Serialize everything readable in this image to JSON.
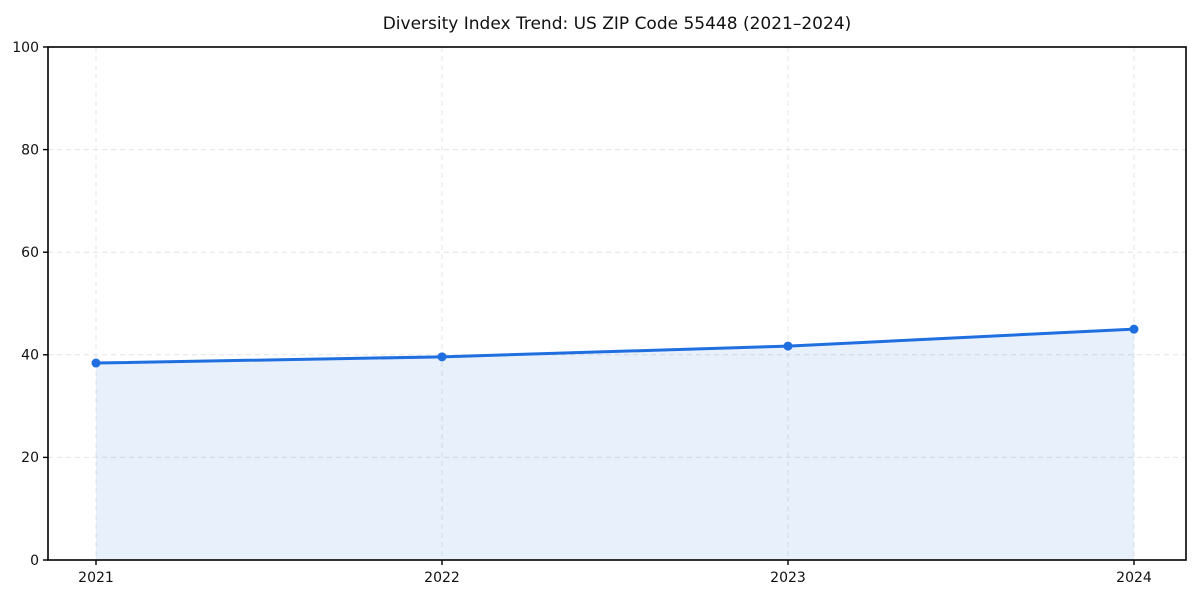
{
  "chart_data": {
    "type": "area",
    "title": "Diversity Index Trend: US ZIP Code 55448 (2021–2024)",
    "x": [
      "2021",
      "2022",
      "2023",
      "2024"
    ],
    "series": [
      {
        "name": "Diversity Index",
        "values": [
          38.4,
          39.6,
          41.7,
          45.0
        ]
      }
    ],
    "xlabel": "",
    "ylabel": "",
    "ylim": [
      0,
      100
    ],
    "yticks": [
      0,
      20,
      40,
      60,
      80,
      100
    ],
    "grid": "dashed",
    "legend": "none",
    "colors": {
      "line": "#1f6fe0",
      "marker": "#1f6fe0",
      "fill": "rgba(31,111,224,0.10)",
      "grid": "#e4e4e4",
      "spine": "#000000",
      "text": "#111111"
    }
  }
}
